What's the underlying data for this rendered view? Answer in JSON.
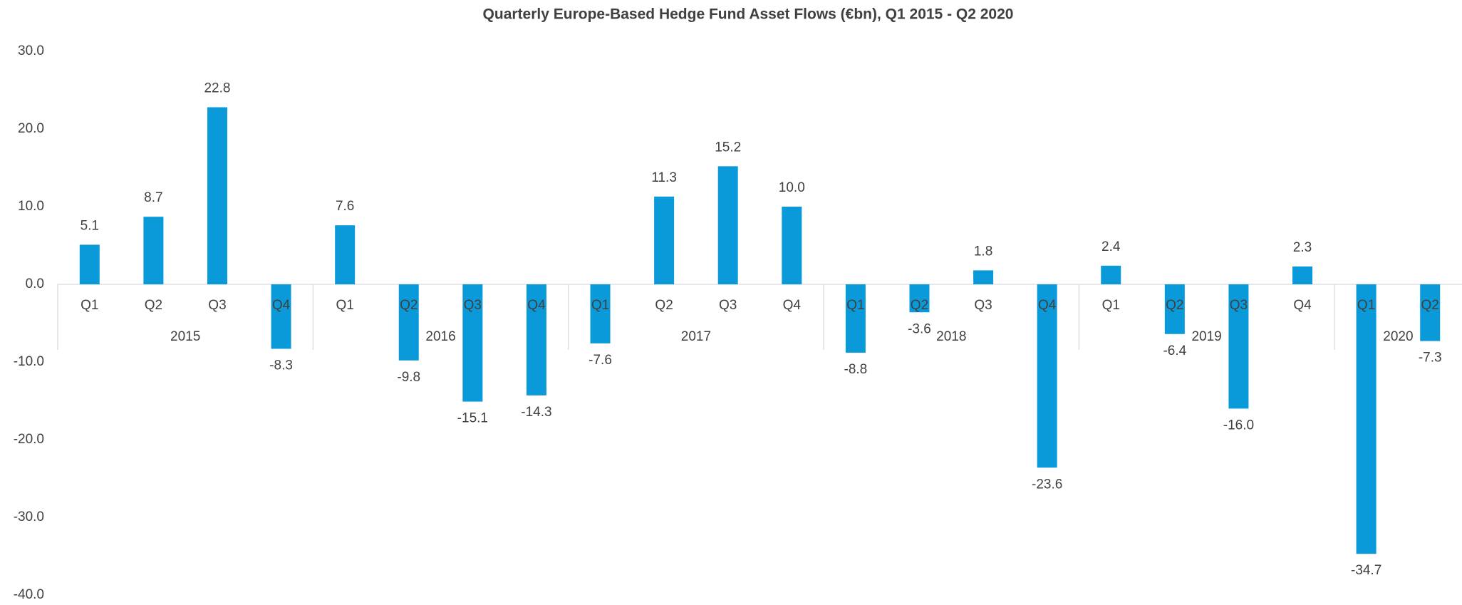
{
  "chart_data": {
    "type": "bar",
    "title": "Quarterly Europe-Based Hedge Fund Asset Flows (€bn), Q1 2015 - Q2 2020",
    "categories": [
      "Q1",
      "Q2",
      "Q3",
      "Q4",
      "Q1",
      "Q2",
      "Q3",
      "Q4",
      "Q1",
      "Q2",
      "Q3",
      "Q4",
      "Q1",
      "Q2",
      "Q3",
      "Q4",
      "Q1",
      "Q2",
      "Q3",
      "Q4",
      "Q1",
      "Q2"
    ],
    "groups": [
      "2015",
      "2016",
      "2017",
      "2018",
      "2019",
      "2020"
    ],
    "values": [
      5.1,
      8.7,
      22.8,
      -8.3,
      7.6,
      -9.8,
      -15.1,
      -14.3,
      -7.6,
      11.3,
      15.2,
      10.0,
      -8.8,
      -3.6,
      1.8,
      -23.6,
      2.4,
      -6.4,
      -16.0,
      2.3,
      -34.7,
      -7.3
    ],
    "value_labels": [
      "5.1",
      "8.7",
      "22.8",
      "-8.3",
      "7.6",
      "-9.8",
      "-15.1",
      "-14.3",
      "-7.6",
      "11.3",
      "15.2",
      "10.0",
      "-8.8",
      "-3.6",
      "1.8",
      "-23.6",
      "2.4",
      "-6.4",
      "-16.0",
      "2.3",
      "-34.7",
      "-7.3"
    ],
    "color": "#0a9ad9",
    "ylim": [
      -40,
      30
    ],
    "yticks": [
      {
        "value": -40,
        "label": "-40.0"
      },
      {
        "value": -30,
        "label": "-30.0"
      },
      {
        "value": -20,
        "label": "-20.0"
      },
      {
        "value": -10,
        "label": "-10.0"
      },
      {
        "value": 0,
        "label": "0.0"
      },
      {
        "value": 10,
        "label": "10.0"
      },
      {
        "value": 20,
        "label": "20.0"
      },
      {
        "value": 30,
        "label": "30.0"
      }
    ],
    "grid": false
  }
}
